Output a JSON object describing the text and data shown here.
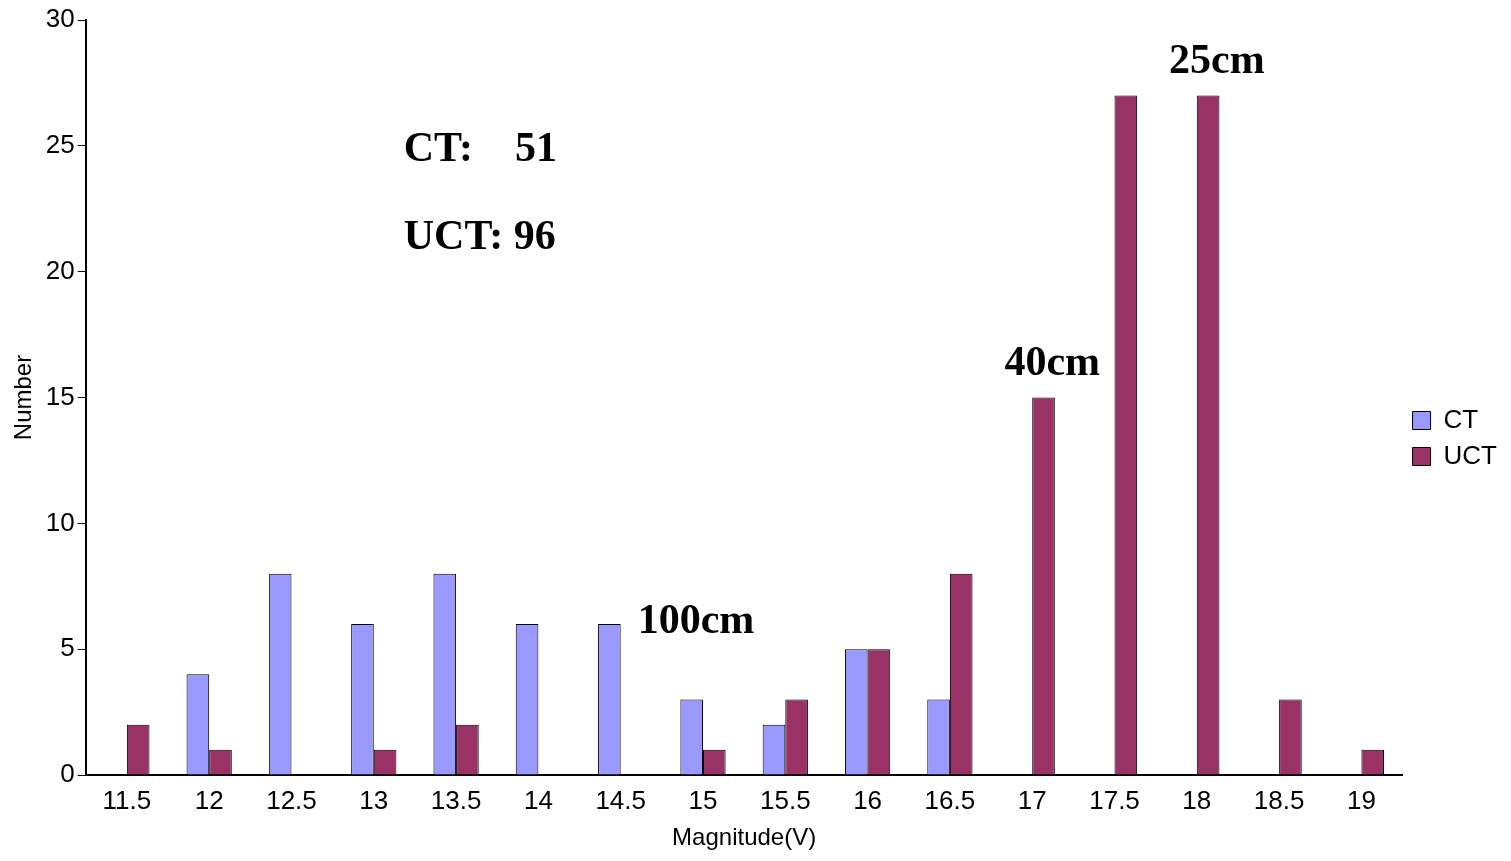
{
  "chart_data": {
    "type": "bar",
    "xlabel": "Magnitude(V)",
    "ylabel": "Number",
    "categories": [
      "11.5",
      "12",
      "12.5",
      "13",
      "13.5",
      "14",
      "14.5",
      "15",
      "15.5",
      "16",
      "16.5",
      "17",
      "17.5",
      "18",
      "18.5",
      "19"
    ],
    "series": [
      {
        "name": "CT",
        "color": "#9999ff",
        "values": [
          0,
          4,
          8,
          6,
          8,
          6,
          6,
          3,
          2,
          5,
          3,
          0,
          0,
          0,
          0,
          0
        ]
      },
      {
        "name": "UCT",
        "color": "#993366",
        "values": [
          2,
          1,
          0,
          1,
          2,
          0,
          0,
          1,
          3,
          5,
          8,
          15,
          27,
          27,
          3,
          1
        ]
      }
    ],
    "ylim": [
      0,
      30
    ],
    "yticks": [
      0,
      5,
      10,
      15,
      20,
      25,
      30
    ],
    "grid": false,
    "legend": "right",
    "annotations": [
      "CT:    51",
      "UCT: 96",
      "100cm",
      {
        "text": "40cm",
        "x": "17",
        "y": 15
      },
      {
        "text": "25cm",
        "x": "18",
        "y": 27
      }
    ]
  }
}
